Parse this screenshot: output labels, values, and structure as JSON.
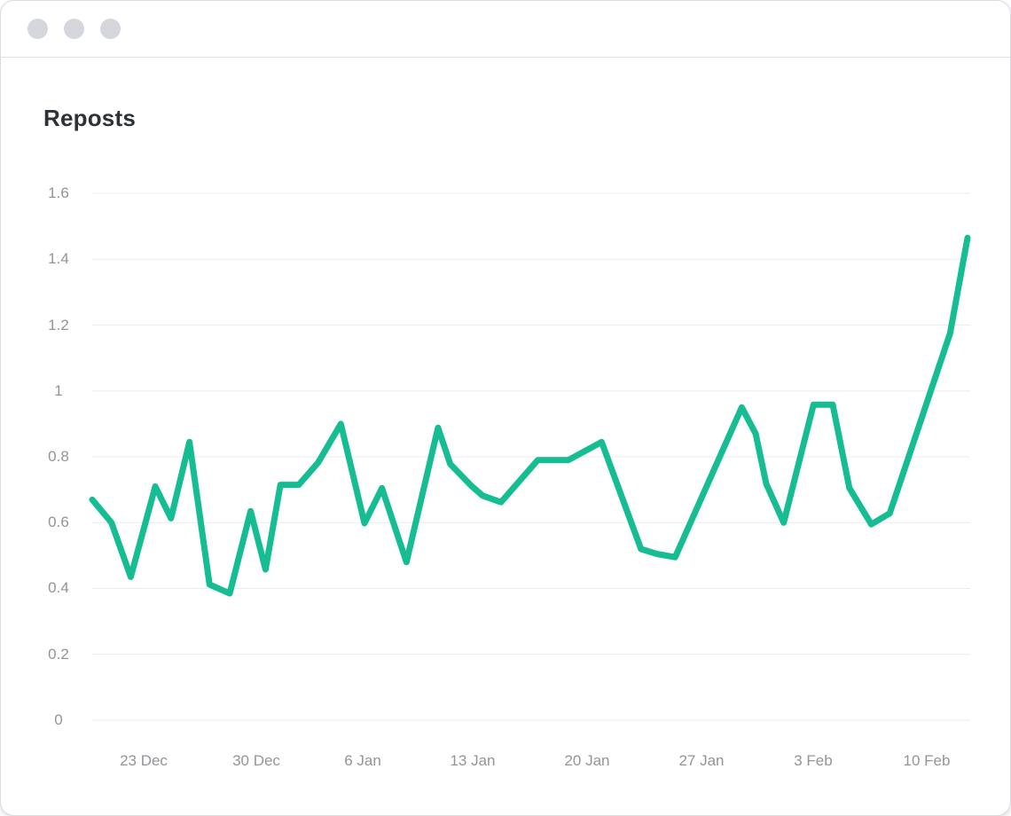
{
  "window": {
    "title": "Reposts"
  },
  "colors": {
    "accent_line": "#16bd92",
    "gridline": "#ebebee",
    "axis_label": "#949499",
    "title_text": "#2d3237",
    "titlebar_dot": "#d5d7dd",
    "window_border": "#d9dae2"
  },
  "chart_data": {
    "type": "line",
    "title": "Reposts",
    "xlabel": "",
    "ylabel": "",
    "ylim": [
      0,
      1.6
    ],
    "grid": "horizontal",
    "legend": "none",
    "y_tick_labels": [
      "0",
      "0.2",
      "0.4",
      "0.6",
      "0.8",
      "1",
      "1.2",
      "1.4",
      "1.6"
    ],
    "x_tick_labels": [
      "23 Dec",
      "30 Dec",
      "6 Jan",
      "13 Jan",
      "20 Jan",
      "27 Jan",
      "3 Feb",
      "10 Feb"
    ],
    "x_tick_pos": [
      0.059,
      0.187,
      0.309,
      0.435,
      0.565,
      0.696,
      0.824,
      0.953
    ],
    "series": [
      {
        "name": "Reposts",
        "color": "#16bd92",
        "points": [
          [
            0.0,
            0.67
          ],
          [
            0.022,
            0.6
          ],
          [
            0.044,
            0.435
          ],
          [
            0.072,
            0.71
          ],
          [
            0.09,
            0.613
          ],
          [
            0.111,
            0.845
          ],
          [
            0.134,
            0.412
          ],
          [
            0.157,
            0.385
          ],
          [
            0.181,
            0.635
          ],
          [
            0.198,
            0.458
          ],
          [
            0.215,
            0.715
          ],
          [
            0.236,
            0.715
          ],
          [
            0.258,
            0.782
          ],
          [
            0.284,
            0.9
          ],
          [
            0.311,
            0.598
          ],
          [
            0.331,
            0.705
          ],
          [
            0.359,
            0.48
          ],
          [
            0.395,
            0.888
          ],
          [
            0.409,
            0.778
          ],
          [
            0.433,
            0.712
          ],
          [
            0.446,
            0.682
          ],
          [
            0.467,
            0.662
          ],
          [
            0.509,
            0.79
          ],
          [
            0.544,
            0.79
          ],
          [
            0.582,
            0.845
          ],
          [
            0.627,
            0.52
          ],
          [
            0.645,
            0.505
          ],
          [
            0.666,
            0.495
          ],
          [
            0.742,
            0.95
          ],
          [
            0.758,
            0.87
          ],
          [
            0.77,
            0.718
          ],
          [
            0.79,
            0.6
          ],
          [
            0.824,
            0.958
          ],
          [
            0.846,
            0.958
          ],
          [
            0.865,
            0.705
          ],
          [
            0.89,
            0.595
          ],
          [
            0.911,
            0.628
          ],
          [
            0.98,
            1.175
          ],
          [
            1.0,
            1.465
          ]
        ]
      }
    ]
  }
}
